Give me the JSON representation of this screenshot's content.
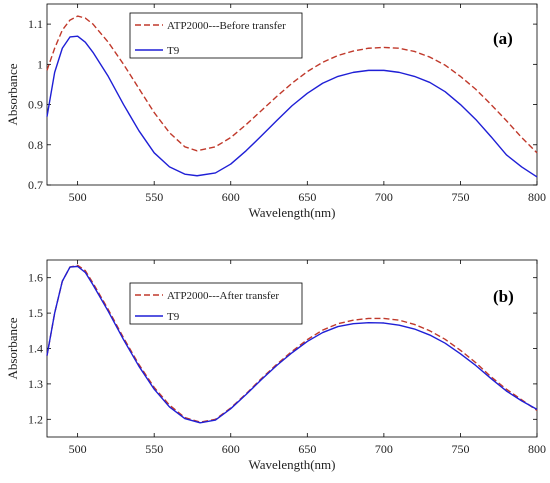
{
  "chart_data": [
    {
      "type": "line",
      "panel_label": "(a)",
      "xlabel": "Wavelength(nm)",
      "ylabel": "Absorbance",
      "xlim": [
        480,
        800
      ],
      "ylim": [
        0.7,
        1.15
      ],
      "xticks": [
        500,
        550,
        600,
        650,
        700,
        750,
        800
      ],
      "yticks": [
        0.7,
        0.8,
        0.9,
        1,
        1.1
      ],
      "ytick_labels": [
        "0.7",
        "0.8",
        "0.9",
        "1",
        "1.1"
      ],
      "legend_position": "top-left",
      "series": [
        {
          "name": "ATP2000---Before transfer",
          "color": "#c0392b",
          "style": "dashed",
          "x": [
            480,
            485,
            490,
            495,
            500,
            505,
            510,
            520,
            530,
            540,
            550,
            560,
            570,
            578,
            590,
            600,
            610,
            620,
            630,
            640,
            650,
            660,
            670,
            680,
            690,
            700,
            710,
            720,
            730,
            740,
            750,
            760,
            770,
            780,
            790,
            800
          ],
          "y": [
            0.985,
            1.04,
            1.085,
            1.11,
            1.12,
            1.115,
            1.1,
            1.055,
            1.0,
            0.94,
            0.88,
            0.83,
            0.795,
            0.785,
            0.795,
            0.818,
            0.85,
            0.885,
            0.92,
            0.953,
            0.982,
            1.005,
            1.022,
            1.033,
            1.04,
            1.042,
            1.04,
            1.032,
            1.018,
            0.998,
            0.97,
            0.938,
            0.9,
            0.86,
            0.818,
            0.78
          ]
        },
        {
          "name": "T9",
          "color": "#1f1fd6",
          "style": "solid",
          "x": [
            480,
            485,
            490,
            495,
            500,
            505,
            510,
            520,
            530,
            540,
            550,
            560,
            570,
            578,
            590,
            600,
            610,
            620,
            630,
            640,
            650,
            660,
            670,
            680,
            690,
            700,
            710,
            720,
            730,
            740,
            750,
            760,
            770,
            780,
            790,
            800
          ],
          "y": [
            0.87,
            0.98,
            1.04,
            1.068,
            1.07,
            1.055,
            1.03,
            0.97,
            0.9,
            0.835,
            0.78,
            0.745,
            0.727,
            0.723,
            0.73,
            0.752,
            0.785,
            0.822,
            0.86,
            0.897,
            0.928,
            0.953,
            0.97,
            0.98,
            0.985,
            0.985,
            0.98,
            0.97,
            0.955,
            0.932,
            0.9,
            0.863,
            0.82,
            0.775,
            0.745,
            0.72
          ]
        }
      ]
    },
    {
      "type": "line",
      "panel_label": "(b)",
      "xlabel": "Wavelength(nm)",
      "ylabel": "Absorbance",
      "xlim": [
        480,
        800
      ],
      "ylim": [
        1.15,
        1.65
      ],
      "xticks": [
        500,
        550,
        600,
        650,
        700,
        750,
        800
      ],
      "yticks": [
        1.2,
        1.3,
        1.4,
        1.5,
        1.6
      ],
      "ytick_labels": [
        "1.2",
        "1.3",
        "1.4",
        "1.5",
        "1.6"
      ],
      "legend_position": "top-left",
      "series": [
        {
          "name": "ATP2000---After transfer",
          "color": "#c0392b",
          "style": "dashed",
          "x": [
            480,
            485,
            490,
            495,
            500,
            505,
            510,
            520,
            530,
            540,
            550,
            560,
            570,
            580,
            590,
            600,
            610,
            620,
            630,
            640,
            650,
            660,
            670,
            680,
            690,
            700,
            710,
            720,
            730,
            740,
            750,
            760,
            770,
            780,
            790,
            800
          ],
          "y": [
            1.38,
            1.5,
            1.59,
            1.63,
            1.635,
            1.62,
            1.585,
            1.51,
            1.43,
            1.355,
            1.29,
            1.24,
            1.205,
            1.192,
            1.2,
            1.232,
            1.272,
            1.315,
            1.355,
            1.392,
            1.425,
            1.452,
            1.47,
            1.48,
            1.485,
            1.485,
            1.48,
            1.468,
            1.45,
            1.426,
            1.395,
            1.36,
            1.32,
            1.285,
            1.255,
            1.225
          ]
        },
        {
          "name": "T9",
          "color": "#1f1fd6",
          "style": "solid",
          "x": [
            480,
            485,
            490,
            495,
            500,
            505,
            510,
            520,
            530,
            540,
            550,
            560,
            570,
            580,
            590,
            600,
            610,
            620,
            630,
            640,
            650,
            660,
            670,
            680,
            690,
            700,
            710,
            720,
            730,
            740,
            750,
            760,
            770,
            780,
            790,
            800
          ],
          "y": [
            1.38,
            1.5,
            1.59,
            1.63,
            1.632,
            1.615,
            1.58,
            1.505,
            1.425,
            1.35,
            1.285,
            1.235,
            1.202,
            1.19,
            1.198,
            1.23,
            1.27,
            1.312,
            1.352,
            1.388,
            1.42,
            1.445,
            1.462,
            1.47,
            1.473,
            1.472,
            1.466,
            1.455,
            1.438,
            1.415,
            1.385,
            1.352,
            1.315,
            1.28,
            1.252,
            1.228
          ]
        }
      ]
    }
  ]
}
